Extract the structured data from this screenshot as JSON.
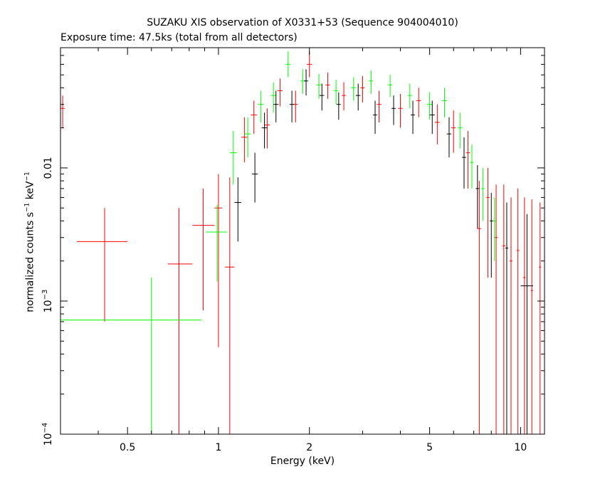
{
  "chart_data": {
    "type": "scatter",
    "title": "SUZAKU XIS observation of X0331+53 (Sequence 904004010)",
    "subtitle": "Exposure time: 47.5ks (total from all detectors)",
    "xlabel": "Energy (keV)",
    "ylabel": {
      "prefix": "normalized counts s",
      "exp1": "−1",
      "middle": " keV",
      "exp2": "−1"
    },
    "x_scale": "log",
    "y_scale": "log",
    "xlim": [
      0.3,
      12
    ],
    "ylim": [
      0.0001,
      0.08
    ],
    "x_ticks": [
      {
        "value": 0.5,
        "label": "0.5"
      },
      {
        "value": 1,
        "label": "1"
      },
      {
        "value": 2,
        "label": "2"
      },
      {
        "value": 5,
        "label": "5"
      },
      {
        "value": 10,
        "label": "10"
      }
    ],
    "y_ticks": [
      {
        "value": 0.0001,
        "base": "10",
        "exp": "−4"
      },
      {
        "value": 0.001,
        "base": "10",
        "exp": "−3"
      },
      {
        "value": 0.01,
        "text": "0.01"
      }
    ],
    "grid": false,
    "colors": {
      "xis_black": "#000000",
      "xis_red": "#ff0000",
      "xis_green": "#00ff00"
    },
    "series": [
      {
        "color": "#ff0000",
        "points": [
          {
            "x": 0.305,
            "xlo": 0.3,
            "xhi": 0.31,
            "y": 0.028,
            "ylo": 0.02,
            "yhi": 0.035
          },
          {
            "x": 0.42,
            "xlo": 0.34,
            "xhi": 0.5,
            "y": 0.0028,
            "ylo": 0.0007,
            "yhi": 0.005
          },
          {
            "x": 0.74,
            "xlo": 0.68,
            "xhi": 0.82,
            "y": 0.0019,
            "ylo": 0.0001,
            "yhi": 0.005
          },
          {
            "x": 0.89,
            "xlo": 0.82,
            "xhi": 0.97,
            "y": 0.0037,
            "ylo": 0.00085,
            "yhi": 0.007
          },
          {
            "x": 1.0,
            "xlo": 0.97,
            "xhi": 1.03,
            "y": 0.005,
            "ylo": 0.00045,
            "yhi": 0.009
          },
          {
            "x": 1.09,
            "xlo": 1.05,
            "xhi": 1.13,
            "y": 0.0018,
            "ylo": 0.0001,
            "yhi": 0.0085
          },
          {
            "x": 1.22,
            "xlo": 1.19,
            "xhi": 1.25,
            "y": 0.017,
            "ylo": 0.011,
            "yhi": 0.024
          },
          {
            "x": 1.31,
            "xlo": 1.28,
            "xhi": 1.34,
            "y": 0.025,
            "ylo": 0.018,
            "yhi": 0.032
          },
          {
            "x": 1.45,
            "xlo": 1.42,
            "xhi": 1.48,
            "y": 0.021,
            "ylo": 0.014,
            "yhi": 0.028
          },
          {
            "x": 1.6,
            "xlo": 1.57,
            "xhi": 1.63,
            "y": 0.038,
            "ylo": 0.029,
            "yhi": 0.047
          },
          {
            "x": 1.8,
            "xlo": 1.77,
            "xhi": 1.83,
            "y": 0.03,
            "ylo": 0.022,
            "yhi": 0.038
          },
          {
            "x": 2.0,
            "xlo": 1.96,
            "xhi": 2.04,
            "y": 0.06,
            "ylo": 0.048,
            "yhi": 0.075
          },
          {
            "x": 2.3,
            "xlo": 2.26,
            "xhi": 2.34,
            "y": 0.042,
            "ylo": 0.033,
            "yhi": 0.052
          },
          {
            "x": 2.6,
            "xlo": 2.56,
            "xhi": 2.64,
            "y": 0.035,
            "ylo": 0.027,
            "yhi": 0.044
          },
          {
            "x": 3.0,
            "xlo": 2.95,
            "xhi": 3.05,
            "y": 0.04,
            "ylo": 0.031,
            "yhi": 0.049
          },
          {
            "x": 3.4,
            "xlo": 3.34,
            "xhi": 3.46,
            "y": 0.03,
            "ylo": 0.022,
            "yhi": 0.038
          },
          {
            "x": 4.0,
            "xlo": 3.93,
            "xhi": 4.07,
            "y": 0.028,
            "ylo": 0.02,
            "yhi": 0.036
          },
          {
            "x": 4.6,
            "xlo": 4.52,
            "xhi": 4.68,
            "y": 0.032,
            "ylo": 0.024,
            "yhi": 0.04
          },
          {
            "x": 5.3,
            "xlo": 5.2,
            "xhi": 5.4,
            "y": 0.022,
            "ylo": 0.015,
            "yhi": 0.03
          },
          {
            "x": 6.0,
            "xlo": 5.9,
            "xhi": 6.1,
            "y": 0.02,
            "ylo": 0.013,
            "yhi": 0.027
          },
          {
            "x": 6.7,
            "xlo": 6.6,
            "xhi": 6.8,
            "y": 0.013,
            "ylo": 0.007,
            "yhi": 0.019
          },
          {
            "x": 7.3,
            "xlo": 7.2,
            "xhi": 7.4,
            "y": 0.0035,
            "ylo": 0.0001,
            "yhi": 0.008
          },
          {
            "x": 7.8,
            "xlo": 7.7,
            "xhi": 7.9,
            "y": 0.006,
            "ylo": 0.0015,
            "yhi": 0.01
          },
          {
            "x": 8.3,
            "xlo": 8.2,
            "xhi": 8.4,
            "y": 0.003,
            "ylo": 0.0001,
            "yhi": 0.0075
          },
          {
            "x": 8.8,
            "xlo": 8.7,
            "xhi": 8.9,
            "y": 0.0026,
            "ylo": 0.0001,
            "yhi": 0.0075
          },
          {
            "x": 9.3,
            "xlo": 9.2,
            "xhi": 9.4,
            "y": 0.002,
            "ylo": 0.0001,
            "yhi": 0.006
          },
          {
            "x": 9.8,
            "xlo": 9.7,
            "xhi": 9.9,
            "y": 0.0024,
            "ylo": 0.0001,
            "yhi": 0.007
          },
          {
            "x": 10.3,
            "xlo": 10.2,
            "xhi": 10.4,
            "y": 0.0015,
            "ylo": 0.0001,
            "yhi": 0.006
          },
          {
            "x": 10.9,
            "xlo": 10.8,
            "xhi": 11.0,
            "y": 0.0012,
            "ylo": 0.0001,
            "yhi": 0.0058
          },
          {
            "x": 11.6,
            "xlo": 11.5,
            "xhi": 11.7,
            "y": 0.0018,
            "ylo": 0.0001,
            "yhi": 0.0055
          }
        ]
      },
      {
        "color": "#00ff00",
        "points": [
          {
            "x": 0.6,
            "xlo": 0.3,
            "xhi": 0.88,
            "y": 0.00072,
            "ylo": 0.0001,
            "yhi": 0.0015
          },
          {
            "x": 0.99,
            "xlo": 0.91,
            "xhi": 1.07,
            "y": 0.0033,
            "ylo": 0.0014,
            "yhi": 0.0053
          },
          {
            "x": 1.12,
            "xlo": 1.09,
            "xhi": 1.15,
            "y": 0.013,
            "ylo": 0.0075,
            "yhi": 0.019
          },
          {
            "x": 1.25,
            "xlo": 1.22,
            "xhi": 1.28,
            "y": 0.018,
            "ylo": 0.012,
            "yhi": 0.024
          },
          {
            "x": 1.38,
            "xlo": 1.35,
            "xhi": 1.41,
            "y": 0.03,
            "ylo": 0.022,
            "yhi": 0.038
          },
          {
            "x": 1.52,
            "xlo": 1.49,
            "xhi": 1.55,
            "y": 0.035,
            "ylo": 0.026,
            "yhi": 0.044
          },
          {
            "x": 1.7,
            "xlo": 1.67,
            "xhi": 1.73,
            "y": 0.06,
            "ylo": 0.048,
            "yhi": 0.075
          },
          {
            "x": 1.9,
            "xlo": 1.87,
            "xhi": 1.93,
            "y": 0.045,
            "ylo": 0.036,
            "yhi": 0.055
          },
          {
            "x": 2.15,
            "xlo": 2.11,
            "xhi": 2.19,
            "y": 0.042,
            "ylo": 0.033,
            "yhi": 0.051
          },
          {
            "x": 2.45,
            "xlo": 2.41,
            "xhi": 2.49,
            "y": 0.038,
            "ylo": 0.03,
            "yhi": 0.046
          },
          {
            "x": 2.8,
            "xlo": 2.75,
            "xhi": 2.85,
            "y": 0.04,
            "ylo": 0.032,
            "yhi": 0.048
          },
          {
            "x": 3.2,
            "xlo": 3.15,
            "xhi": 3.25,
            "y": 0.045,
            "ylo": 0.036,
            "yhi": 0.054
          },
          {
            "x": 3.7,
            "xlo": 3.64,
            "xhi": 3.76,
            "y": 0.042,
            "ylo": 0.034,
            "yhi": 0.05
          },
          {
            "x": 4.3,
            "xlo": 4.23,
            "xhi": 4.37,
            "y": 0.035,
            "ylo": 0.028,
            "yhi": 0.043
          },
          {
            "x": 5.0,
            "xlo": 4.9,
            "xhi": 5.1,
            "y": 0.03,
            "ylo": 0.023,
            "yhi": 0.037
          },
          {
            "x": 5.6,
            "xlo": 5.5,
            "xhi": 5.7,
            "y": 0.032,
            "ylo": 0.024,
            "yhi": 0.04
          },
          {
            "x": 6.3,
            "xlo": 6.2,
            "xhi": 6.4,
            "y": 0.02,
            "ylo": 0.014,
            "yhi": 0.026
          },
          {
            "x": 6.9,
            "xlo": 6.8,
            "xhi": 7.0,
            "y": 0.011,
            "ylo": 0.007,
            "yhi": 0.015
          },
          {
            "x": 7.5,
            "xlo": 7.4,
            "xhi": 7.6,
            "y": 0.007,
            "ylo": 0.004,
            "yhi": 0.01
          },
          {
            "x": 8.2,
            "xlo": 8.1,
            "xhi": 8.3,
            "y": 0.004,
            "ylo": 0.002,
            "yhi": 0.006
          },
          {
            "x": 9.0,
            "xlo": 8.9,
            "xhi": 9.1,
            "y": 0.0025,
            "ylo": 0.0012,
            "yhi": 0.0038
          }
        ]
      },
      {
        "color": "#000000",
        "points": [
          {
            "x": 1.16,
            "xlo": 1.13,
            "xhi": 1.19,
            "y": 0.0055,
            "ylo": 0.0028,
            "yhi": 0.0085
          },
          {
            "x": 1.32,
            "xlo": 1.29,
            "xhi": 1.35,
            "y": 0.009,
            "ylo": 0.0055,
            "yhi": 0.013
          },
          {
            "x": 1.42,
            "xlo": 1.39,
            "xhi": 1.45,
            "y": 0.02,
            "ylo": 0.014,
            "yhi": 0.026
          },
          {
            "x": 1.55,
            "xlo": 1.52,
            "xhi": 1.58,
            "y": 0.03,
            "ylo": 0.022,
            "yhi": 0.038
          },
          {
            "x": 1.75,
            "xlo": 1.72,
            "xhi": 1.78,
            "y": 0.03,
            "ylo": 0.022,
            "yhi": 0.038
          },
          {
            "x": 1.95,
            "xlo": 1.92,
            "xhi": 1.98,
            "y": 0.045,
            "ylo": 0.035,
            "yhi": 0.055
          },
          {
            "x": 2.2,
            "xlo": 2.16,
            "xhi": 2.24,
            "y": 0.035,
            "ylo": 0.027,
            "yhi": 0.043
          },
          {
            "x": 2.5,
            "xlo": 2.46,
            "xhi": 2.54,
            "y": 0.03,
            "ylo": 0.023,
            "yhi": 0.037
          },
          {
            "x": 2.9,
            "xlo": 2.85,
            "xhi": 2.95,
            "y": 0.035,
            "ylo": 0.027,
            "yhi": 0.043
          },
          {
            "x": 3.3,
            "xlo": 3.25,
            "xhi": 3.35,
            "y": 0.025,
            "ylo": 0.018,
            "yhi": 0.032
          },
          {
            "x": 3.8,
            "xlo": 3.74,
            "xhi": 3.86,
            "y": 0.028,
            "ylo": 0.021,
            "yhi": 0.035
          },
          {
            "x": 4.4,
            "xlo": 4.33,
            "xhi": 4.47,
            "y": 0.025,
            "ylo": 0.018,
            "yhi": 0.032
          },
          {
            "x": 5.1,
            "xlo": 5.0,
            "xhi": 5.2,
            "y": 0.025,
            "ylo": 0.018,
            "yhi": 0.032
          },
          {
            "x": 5.8,
            "xlo": 5.7,
            "xhi": 5.9,
            "y": 0.018,
            "ylo": 0.012,
            "yhi": 0.024
          },
          {
            "x": 6.5,
            "xlo": 6.4,
            "xhi": 6.6,
            "y": 0.012,
            "ylo": 0.007,
            "yhi": 0.017
          },
          {
            "x": 7.2,
            "xlo": 7.1,
            "xhi": 7.3,
            "y": 0.007,
            "ylo": 0.0035,
            "yhi": 0.0105
          },
          {
            "x": 8.0,
            "xlo": 7.9,
            "xhi": 8.1,
            "y": 0.004,
            "ylo": 0.0015,
            "yhi": 0.0065
          },
          {
            "x": 9.0,
            "xlo": 8.9,
            "xhi": 9.1,
            "y": 0.0025,
            "ylo": 0.0001,
            "yhi": 0.0055
          },
          {
            "x": 10.5,
            "xlo": 10.0,
            "xhi": 11.0,
            "y": 0.0013,
            "ylo": 0.0001,
            "yhi": 0.0045
          }
        ]
      }
    ]
  }
}
